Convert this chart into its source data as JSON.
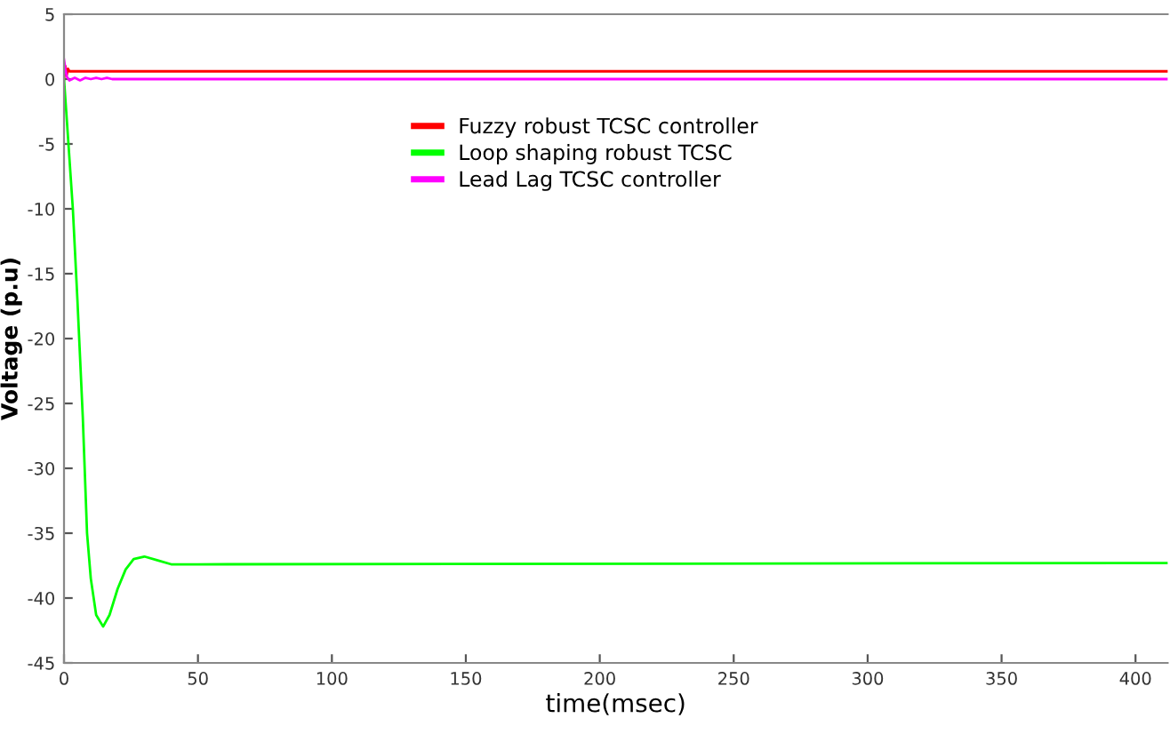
{
  "chart_data": {
    "type": "line",
    "xlabel": "time(msec)",
    "ylabel": "Voltage (p.u)",
    "xlim": [
      0,
      412
    ],
    "ylim": [
      -45,
      5
    ],
    "xticks": [
      0,
      50,
      100,
      150,
      200,
      250,
      300,
      350,
      400
    ],
    "yticks": [
      {
        "value": 5,
        "label": "5"
      },
      {
        "value": 0,
        "label": "0"
      },
      {
        "value": -5,
        "label": "-5"
      },
      {
        "value": -10,
        "label": "-10"
      },
      {
        "value": -15,
        "label": "-15"
      },
      {
        "value": -20,
        "label": "-20"
      },
      {
        "value": -25,
        "label": "-25"
      },
      {
        "value": -30,
        "label": "-30"
      },
      {
        "value": -35,
        "label": "-35"
      },
      {
        "value": -40,
        "label": "-40"
      },
      {
        "value": -45,
        "label": "-45"
      }
    ],
    "grid": false,
    "legend": "top",
    "series": [
      {
        "name": "Fuzzy robust TCSC controller",
        "color": "#ff0000",
        "x": [
          0,
          0.5,
          1,
          1.5,
          2,
          412
        ],
        "values": [
          0,
          1.0,
          0.3,
          0.8,
          0.6,
          0.6
        ]
      },
      {
        "name": "Loop shaping robust TCSC",
        "color": "#00ff00",
        "x": [
          0,
          1,
          3.3,
          5,
          7,
          8.6,
          10,
          12,
          14.6,
          17,
          20,
          23,
          26,
          30,
          35,
          40,
          50,
          412
        ],
        "values": [
          0,
          -3,
          -10,
          -17,
          -26,
          -35,
          -38.5,
          -41.3,
          -42.2,
          -41.3,
          -39.3,
          -37.8,
          -37.0,
          -36.8,
          -37.1,
          -37.4,
          -37.4,
          -37.3
        ]
      },
      {
        "name": "Lead Lag TCSC controller",
        "color": "#ff00ff",
        "x": [
          0,
          0.5,
          1,
          2,
          4,
          6,
          8,
          10,
          12,
          14,
          16,
          18,
          20,
          25,
          412
        ],
        "values": [
          1.5,
          0.8,
          0.2,
          -0.1,
          0.1,
          -0.1,
          0.1,
          0,
          0.1,
          0,
          0.1,
          0,
          0,
          0,
          0
        ]
      }
    ]
  }
}
